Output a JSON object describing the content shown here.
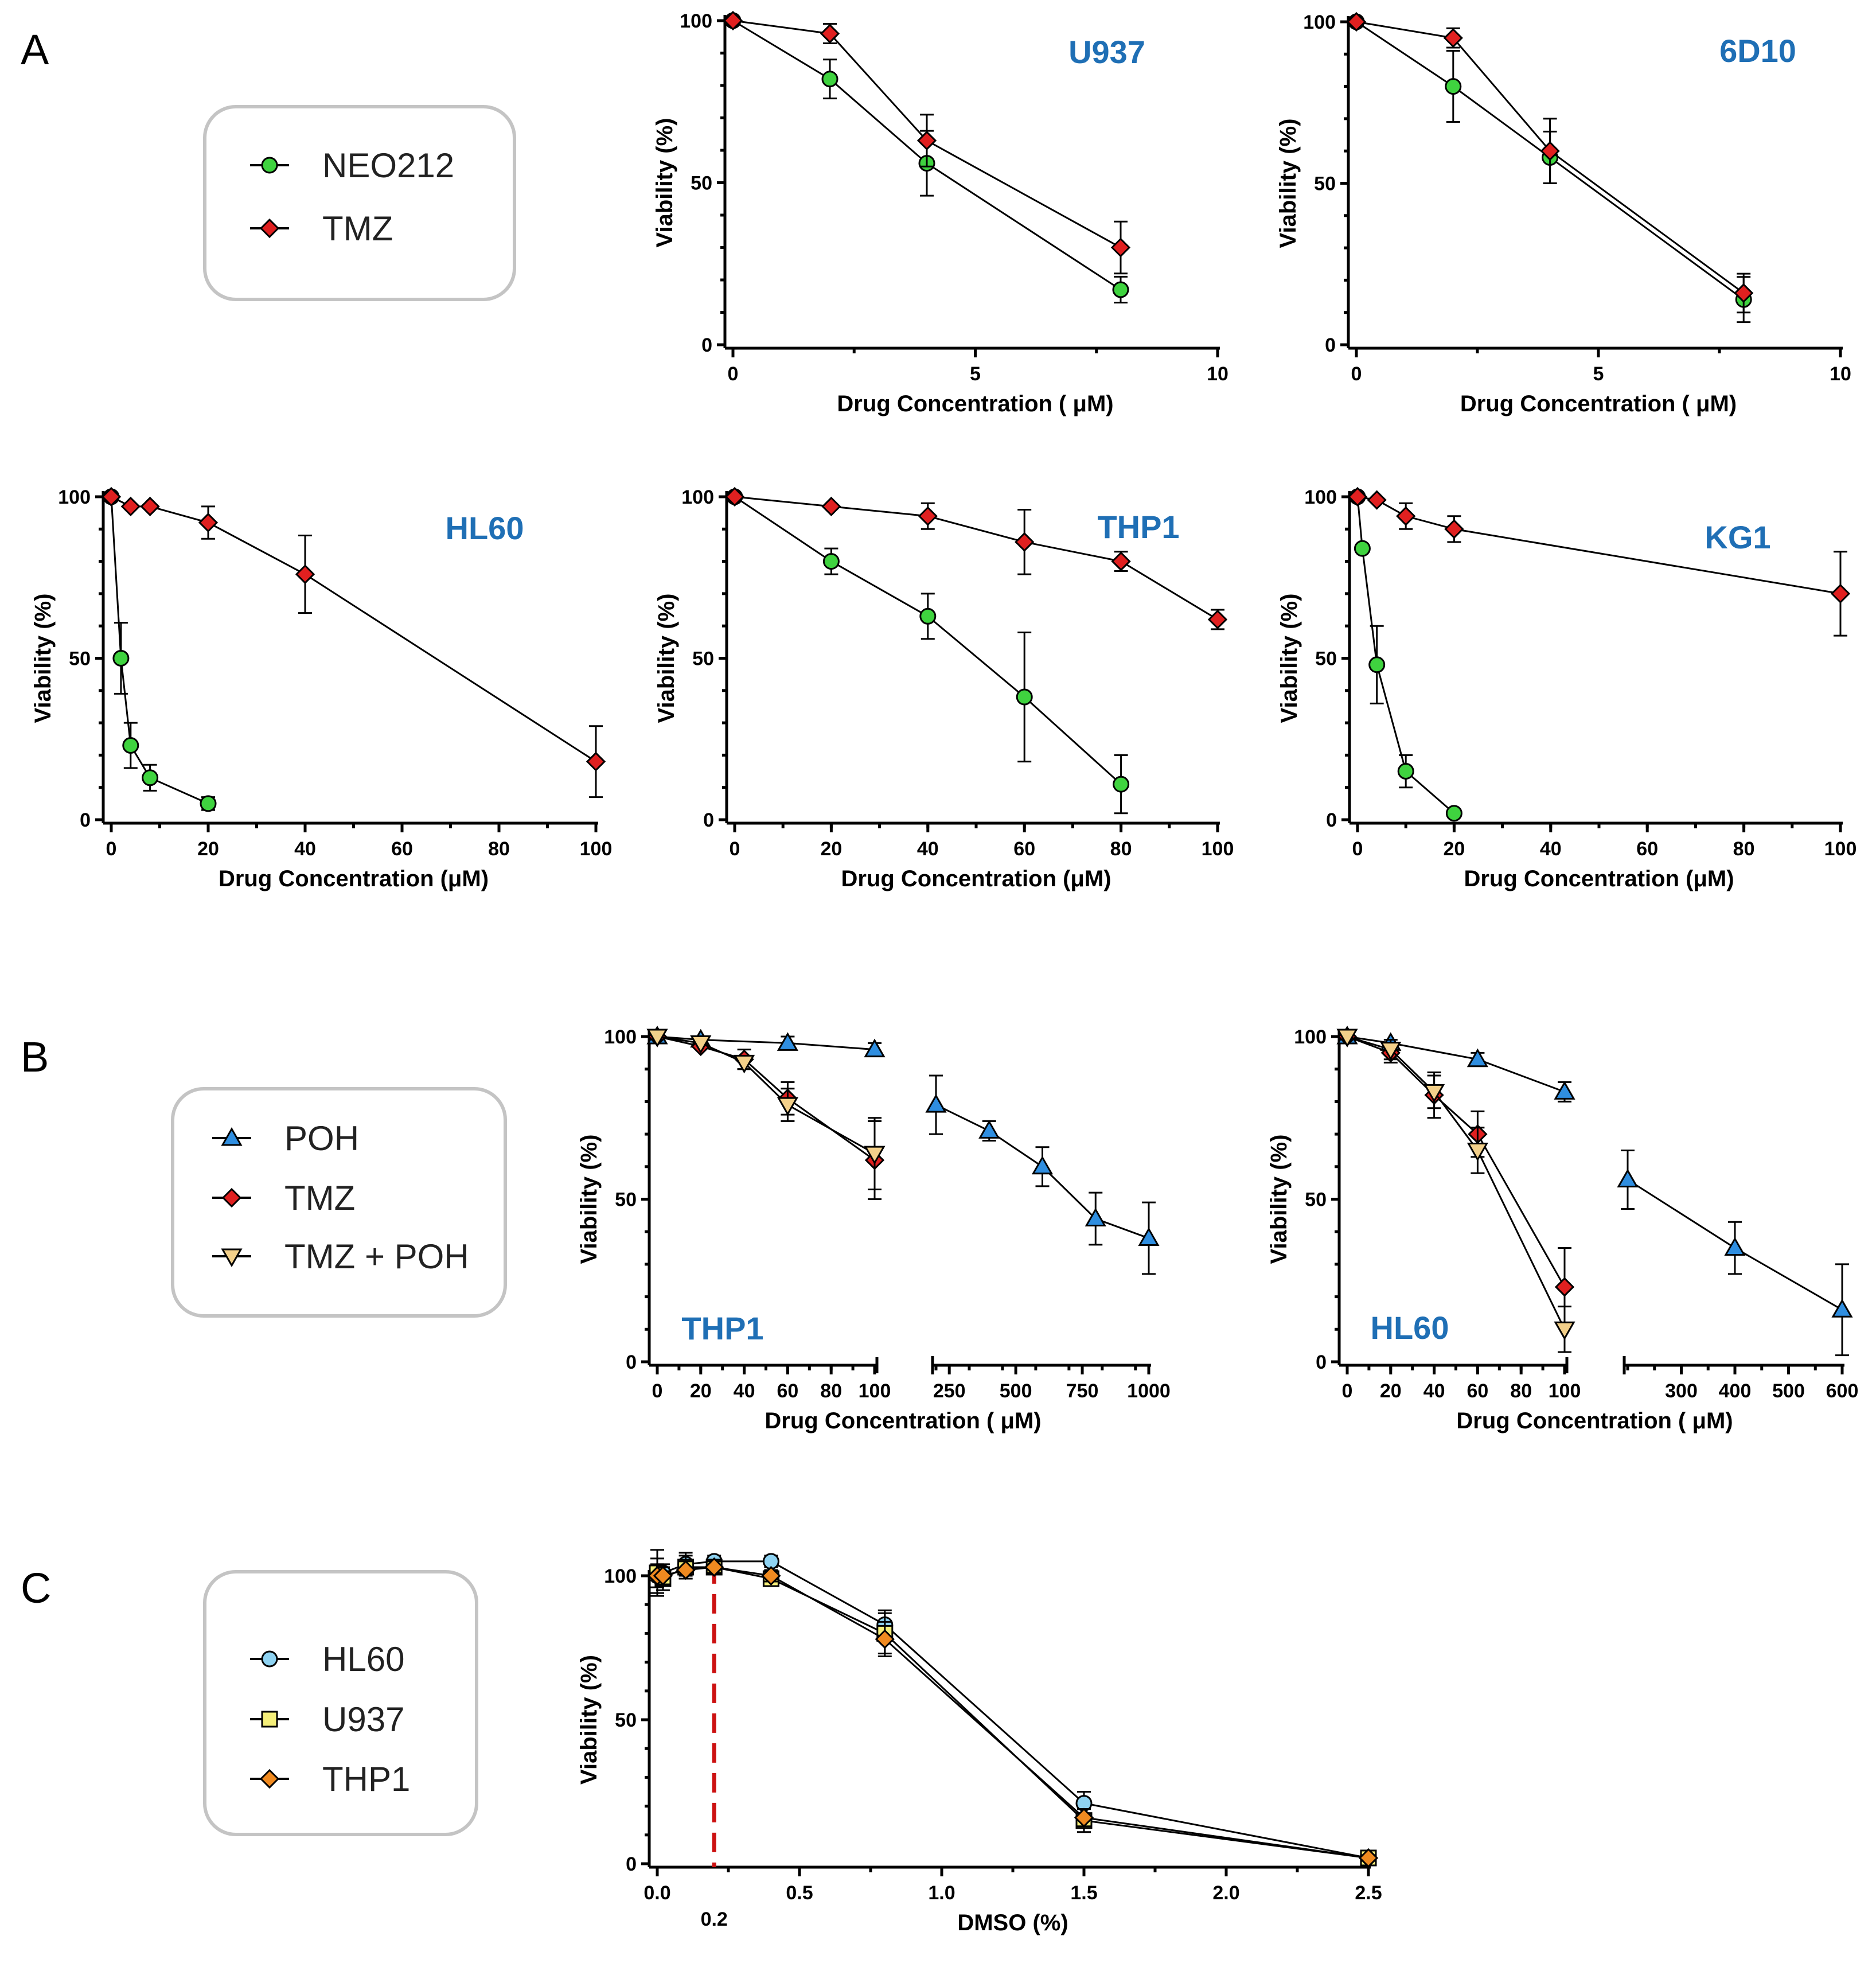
{
  "panels": {
    "A": "A",
    "B": "B",
    "C": "C"
  },
  "colors": {
    "NEO212": "#3fd33f",
    "TMZ": "#e02020",
    "POH": "#2f8ee0",
    "TMZ + POH": "#f3d08a",
    "HL60": "#8fd3f2",
    "U937": "#f5ef7a",
    "THP1": "#f08a20",
    "title": "#1f6fb5",
    "dashed": "#cc1111"
  },
  "legends": {
    "A": [
      {
        "name": "NEO212",
        "marker": "circle"
      },
      {
        "name": "TMZ",
        "marker": "diamond"
      }
    ],
    "B": [
      {
        "name": "POH",
        "marker": "triangle"
      },
      {
        "name": "TMZ",
        "marker": "diamond"
      },
      {
        "name": "TMZ + POH",
        "marker": "triangle-down"
      }
    ],
    "C": [
      {
        "name": "HL60",
        "marker": "circle"
      },
      {
        "name": "U937",
        "marker": "square"
      },
      {
        "name": "THP1",
        "marker": "diamond"
      }
    ]
  },
  "chart_data": [
    {
      "id": "a_u937",
      "type": "line",
      "title": "U937",
      "xlabel": "Drug Concentration ( μM)",
      "ylabel": "Viability (%)",
      "xlim": [
        0,
        10
      ],
      "ylim": [
        0,
        100
      ],
      "xticks": [
        0,
        5,
        10
      ],
      "yticks": [
        0,
        50,
        100
      ],
      "series": [
        {
          "name": "NEO212",
          "marker": "circle",
          "x": [
            0,
            2,
            4,
            8
          ],
          "y": [
            100,
            82,
            56,
            17
          ],
          "err": [
            0,
            6,
            10,
            4
          ]
        },
        {
          "name": "TMZ",
          "marker": "diamond",
          "x": [
            0,
            2,
            4,
            8
          ],
          "y": [
            100,
            96,
            63,
            30
          ],
          "err": [
            0,
            3,
            8,
            8
          ]
        }
      ]
    },
    {
      "id": "a_6d10",
      "type": "line",
      "title": "6D10",
      "xlabel": "Drug Concentration ( μM)",
      "ylabel": "Viability (%)",
      "xlim": [
        0,
        10
      ],
      "ylim": [
        0,
        100
      ],
      "xticks": [
        0,
        5,
        10
      ],
      "yticks": [
        0,
        50,
        100
      ],
      "series": [
        {
          "name": "NEO212",
          "marker": "circle",
          "x": [
            0,
            2,
            4,
            8
          ],
          "y": [
            100,
            80,
            58,
            14
          ],
          "err": [
            0,
            11,
            8,
            7
          ]
        },
        {
          "name": "TMZ",
          "marker": "diamond",
          "x": [
            0,
            2,
            4,
            8
          ],
          "y": [
            100,
            95,
            60,
            16
          ],
          "err": [
            0,
            3,
            10,
            6
          ]
        }
      ]
    },
    {
      "id": "a_hl60",
      "type": "line",
      "title": "HL60",
      "xlabel": "Drug Concentration (μM)",
      "ylabel": "Viability (%)",
      "xlim": [
        0,
        100
      ],
      "ylim": [
        0,
        100
      ],
      "xticks": [
        0,
        20,
        40,
        60,
        80,
        100
      ],
      "yticks": [
        0,
        50,
        100
      ],
      "series": [
        {
          "name": "NEO212",
          "marker": "circle",
          "x": [
            0,
            2,
            4,
            8,
            20
          ],
          "y": [
            100,
            50,
            23,
            13,
            5
          ],
          "err": [
            0,
            11,
            7,
            4,
            2
          ]
        },
        {
          "name": "TMZ",
          "marker": "diamond",
          "x": [
            0,
            4,
            8,
            20,
            40,
            100
          ],
          "y": [
            100,
            97,
            97,
            92,
            76,
            18
          ],
          "err": [
            0,
            0,
            0,
            5,
            12,
            11
          ]
        }
      ]
    },
    {
      "id": "a_thp1",
      "type": "line",
      "title": "THP1",
      "xlabel": "Drug Concentration (μM)",
      "ylabel": "Viability (%)",
      "xlim": [
        0,
        100
      ],
      "ylim": [
        0,
        100
      ],
      "xticks": [
        0,
        20,
        40,
        60,
        80,
        100
      ],
      "yticks": [
        0,
        50,
        100
      ],
      "series": [
        {
          "name": "NEO212",
          "marker": "circle",
          "x": [
            0,
            20,
            40,
            60,
            80
          ],
          "y": [
            100,
            80,
            63,
            38,
            11
          ],
          "err": [
            0,
            4,
            7,
            20,
            9
          ]
        },
        {
          "name": "TMZ",
          "marker": "diamond",
          "x": [
            0,
            20,
            40,
            60,
            80,
            100
          ],
          "y": [
            100,
            97,
            94,
            86,
            80,
            62
          ],
          "err": [
            0,
            0,
            4,
            10,
            3,
            3
          ]
        }
      ]
    },
    {
      "id": "a_kg1",
      "type": "line",
      "title": "KG1",
      "xlabel": "Drug Concentration (μM)",
      "ylabel": "Viability (%)",
      "xlim": [
        0,
        100
      ],
      "ylim": [
        0,
        100
      ],
      "xticks": [
        0,
        20,
        40,
        60,
        80,
        100
      ],
      "yticks": [
        0,
        50,
        100
      ],
      "series": [
        {
          "name": "NEO212",
          "marker": "circle",
          "x": [
            0,
            1,
            4,
            10,
            20
          ],
          "y": [
            100,
            84,
            48,
            15,
            2
          ],
          "err": [
            0,
            0,
            12,
            5,
            1
          ]
        },
        {
          "name": "TMZ",
          "marker": "diamond",
          "x": [
            0,
            4,
            10,
            20,
            100
          ],
          "y": [
            100,
            99,
            94,
            90,
            70
          ],
          "err": [
            0,
            0,
            4,
            4,
            13
          ]
        }
      ]
    },
    {
      "id": "b_thp1",
      "type": "line",
      "title": "THP1",
      "xlabel": "Drug Concentration ( μM)",
      "ylabel": "Viability (%)",
      "ylim": [
        0,
        100
      ],
      "yticks": [
        0,
        50,
        100
      ],
      "broken_axis": true,
      "segments": [
        {
          "xlim": [
            0,
            100
          ],
          "xticks": [
            0,
            20,
            40,
            60,
            80,
            100
          ]
        },
        {
          "xlim": [
            200,
            1000
          ],
          "xticks": [
            250,
            500,
            750,
            1000
          ]
        }
      ],
      "series": [
        {
          "name": "POH",
          "marker": "triangle",
          "segment": 0,
          "x": [
            0,
            20,
            60,
            100
          ],
          "y": [
            100,
            99,
            98,
            96
          ],
          "err": [
            0,
            0,
            2,
            2
          ]
        },
        {
          "name": "POH",
          "marker": "triangle",
          "segment": 1,
          "x": [
            200,
            400,
            600,
            800,
            1000
          ],
          "y": [
            79,
            71,
            60,
            44,
            38
          ],
          "err": [
            9,
            3,
            6,
            8,
            11
          ]
        },
        {
          "name": "TMZ",
          "marker": "diamond",
          "segment": 0,
          "x": [
            0,
            20,
            40,
            60,
            100
          ],
          "y": [
            100,
            97,
            93,
            81,
            62
          ],
          "err": [
            0,
            0,
            3,
            5,
            12
          ]
        },
        {
          "name": "TMZ + POH",
          "marker": "triangle-down",
          "segment": 0,
          "x": [
            0,
            20,
            40,
            60,
            100
          ],
          "y": [
            100,
            98,
            92,
            79,
            64
          ],
          "err": [
            0,
            0,
            2,
            5,
            11
          ]
        }
      ]
    },
    {
      "id": "b_hl60",
      "type": "line",
      "title": "HL60",
      "xlabel": "Drug Concentration ( μM)",
      "ylabel": "Viability (%)",
      "ylim": [
        0,
        100
      ],
      "yticks": [
        0,
        50,
        100
      ],
      "broken_axis": true,
      "segments": [
        {
          "xlim": [
            0,
            100
          ],
          "xticks": [
            0,
            20,
            40,
            60,
            80,
            100
          ]
        },
        {
          "xlim": [
            200,
            600
          ],
          "xticks": [
            300,
            400,
            500,
            600
          ]
        }
      ],
      "series": [
        {
          "name": "POH",
          "marker": "triangle",
          "segment": 0,
          "x": [
            0,
            20,
            60,
            100
          ],
          "y": [
            100,
            98,
            93,
            83
          ],
          "err": [
            0,
            0,
            2,
            3
          ]
        },
        {
          "name": "POH",
          "marker": "triangle",
          "segment": 1,
          "x": [
            200,
            400,
            600
          ],
          "y": [
            56,
            35,
            16
          ],
          "err": [
            9,
            8,
            14
          ]
        },
        {
          "name": "TMZ",
          "marker": "diamond",
          "segment": 0,
          "x": [
            0,
            20,
            40,
            60,
            100
          ],
          "y": [
            100,
            95,
            82,
            70,
            23
          ],
          "err": [
            0,
            3,
            7,
            7,
            12
          ]
        },
        {
          "name": "TMZ + POH",
          "marker": "triangle-down",
          "segment": 0,
          "x": [
            0,
            20,
            40,
            60,
            100
          ],
          "y": [
            100,
            96,
            83,
            65,
            10
          ],
          "err": [
            0,
            3,
            5,
            7,
            7
          ]
        }
      ]
    },
    {
      "id": "c_dmso",
      "type": "line",
      "title": "",
      "xlabel": "DMSO (%)",
      "ylabel": "Viability (%)",
      "xlim": [
        0,
        2.5
      ],
      "ylim": [
        0,
        100
      ],
      "xticks": [
        "0.0",
        "0.5",
        "1.0",
        "1.5",
        "2.0",
        "2.5"
      ],
      "yticks": [
        0,
        50,
        100
      ],
      "reference_line": {
        "x": 0.2,
        "label": "0.2"
      },
      "series": [
        {
          "name": "HL60",
          "marker": "circle",
          "x": [
            0,
            0.02,
            0.1,
            0.2,
            0.4,
            0.8,
            1.5,
            2.5
          ],
          "y": [
            100,
            101,
            104,
            105,
            105,
            83,
            21,
            2
          ],
          "err": [
            6,
            3,
            4,
            2,
            2,
            5,
            4,
            1
          ]
        },
        {
          "name": "U937",
          "marker": "square",
          "x": [
            0,
            0.02,
            0.1,
            0.2,
            0.4,
            0.8,
            1.5,
            2.5
          ],
          "y": [
            101,
            99,
            103,
            103,
            99,
            80,
            15,
            2
          ],
          "err": [
            8,
            4,
            4,
            2,
            2,
            7,
            4,
            1
          ]
        },
        {
          "name": "THP1",
          "marker": "diamond",
          "x": [
            0,
            0.02,
            0.1,
            0.2,
            0.4,
            0.8,
            1.5,
            2.5
          ],
          "y": [
            100,
            100,
            102,
            103,
            100,
            78,
            16,
            2
          ],
          "err": [
            4,
            3,
            3,
            2,
            2,
            6,
            3,
            1
          ]
        }
      ]
    }
  ]
}
